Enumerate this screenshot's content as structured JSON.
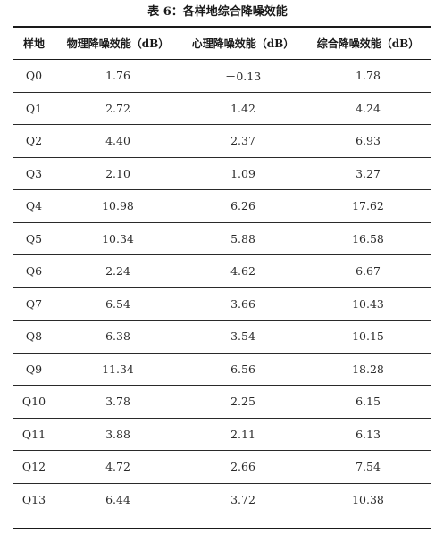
{
  "caption": "表 6：各样地综合降噪效能",
  "headers": [
    "样地",
    "物理降噪效能（dB）",
    "心理降噪效能（dB）",
    "综合降噪效能（dB）"
  ],
  "rows": [
    {
      "site": "Q0",
      "physical": "1.76",
      "psychological": "－0.13",
      "combined": "1.78"
    },
    {
      "site": "Q1",
      "physical": "2.72",
      "psychological": "1.42",
      "combined": "4.24"
    },
    {
      "site": "Q2",
      "physical": "4.40",
      "psychological": "2.37",
      "combined": "6.93"
    },
    {
      "site": "Q3",
      "physical": "2.10",
      "psychological": "1.09",
      "combined": "3.27"
    },
    {
      "site": "Q4",
      "physical": "10.98",
      "psychological": "6.26",
      "combined": "17.62"
    },
    {
      "site": "Q5",
      "physical": "10.34",
      "psychological": "5.88",
      "combined": "16.58"
    },
    {
      "site": "Q6",
      "physical": "2.24",
      "psychological": "4.62",
      "combined": "6.67"
    },
    {
      "site": "Q7",
      "physical": "6.54",
      "psychological": "3.66",
      "combined": "10.43"
    },
    {
      "site": "Q8",
      "physical": "6.38",
      "psychological": "3.54",
      "combined": "10.15"
    },
    {
      "site": "Q9",
      "physical": "11.34",
      "psychological": "6.56",
      "combined": "18.28"
    },
    {
      "site": "Q10",
      "physical": "3.78",
      "psychological": "2.25",
      "combined": "6.15"
    },
    {
      "site": "Q11",
      "physical": "3.88",
      "psychological": "2.11",
      "combined": "6.13"
    },
    {
      "site": "Q12",
      "physical": "4.72",
      "psychological": "2.66",
      "combined": "7.54"
    },
    {
      "site": "Q13",
      "physical": "6.44",
      "psychological": "3.72",
      "combined": "10.38"
    }
  ]
}
